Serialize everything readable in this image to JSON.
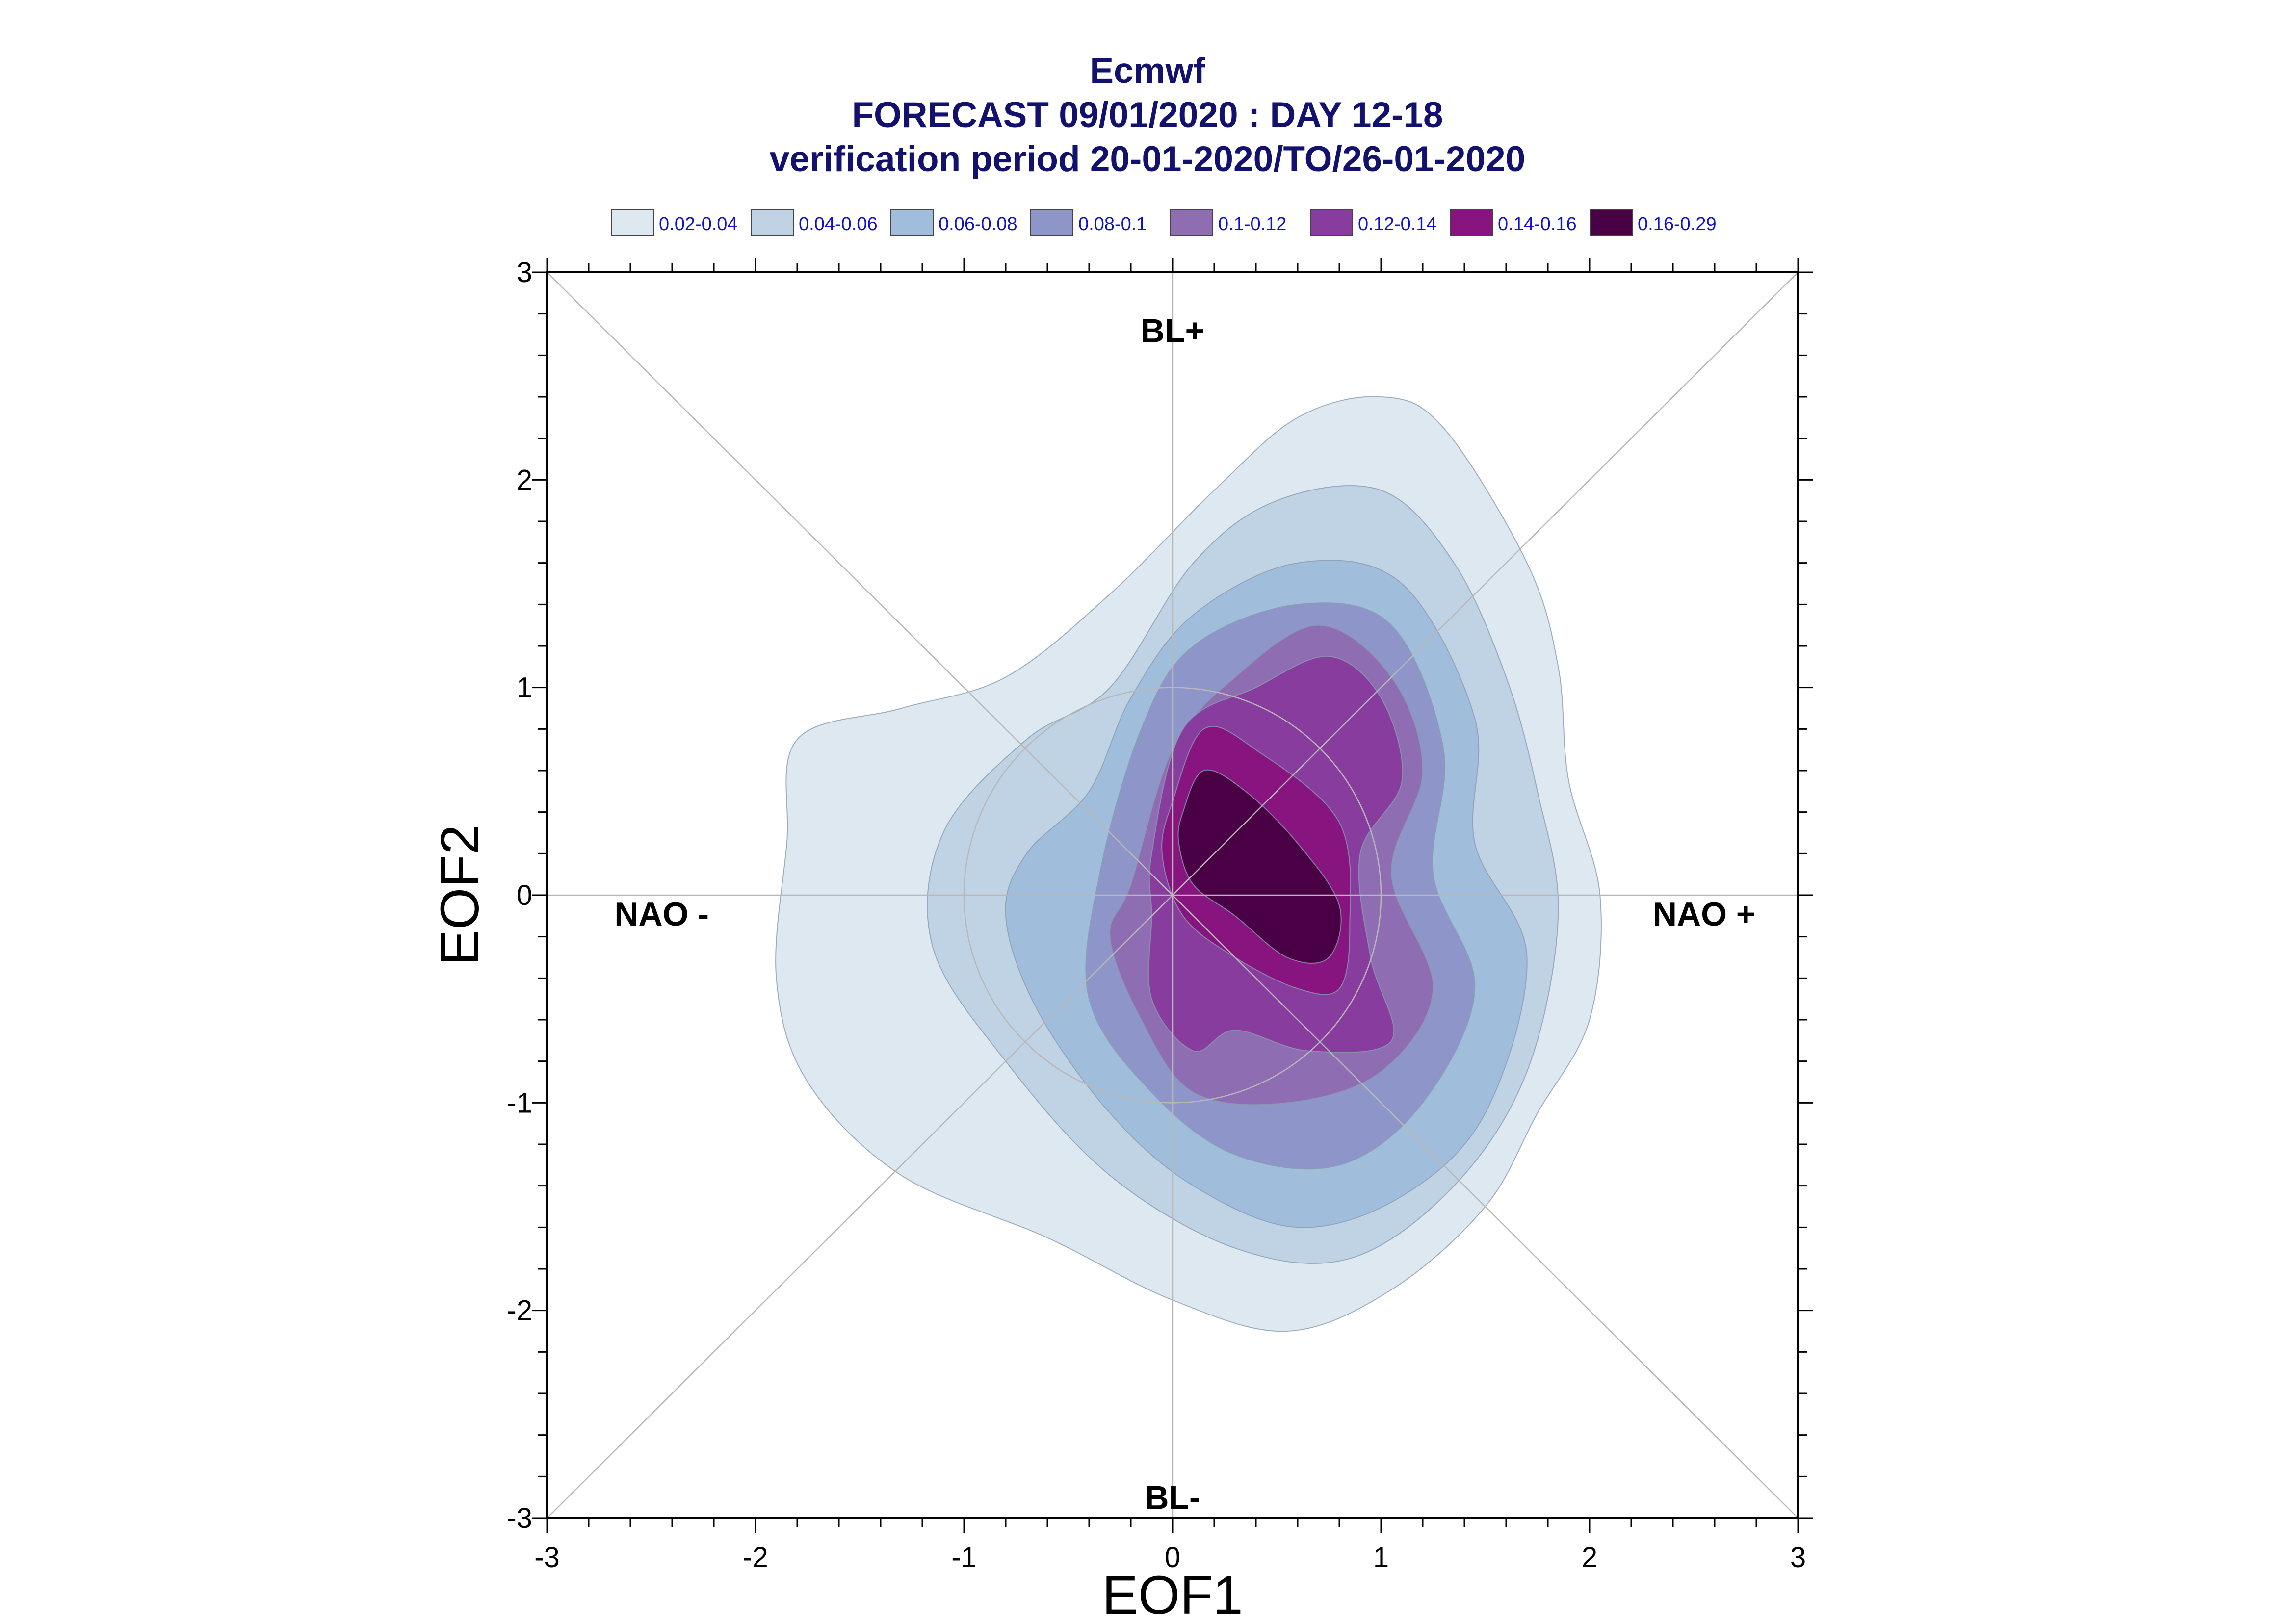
{
  "title": {
    "line1": "Ecmwf",
    "line2": "FORECAST 09/01/2020 : DAY 12-18",
    "line3": "verification period 20-01-2020/TO/26-01-2020"
  },
  "legend": [
    {
      "label": "0.02-0.04",
      "color": "#dde8f1"
    },
    {
      "label": "0.04-0.06",
      "color": "#bfd3e4"
    },
    {
      "label": "0.06-0.08",
      "color": "#a0bedb"
    },
    {
      "label": "0.08-0.1",
      "color": "#8e95c8"
    },
    {
      "label": "0.1-0.12",
      "color": "#8f6db3"
    },
    {
      "label": "0.12-0.14",
      "color": "#883c9e"
    },
    {
      "label": "0.14-0.16",
      "color": "#88147f"
    },
    {
      "label": "0.16-0.29",
      "color": "#4a0045"
    }
  ],
  "chart_data": {
    "type": "contour",
    "xlabel": "EOF1",
    "ylabel": "EOF2",
    "xlim": [
      -3,
      3
    ],
    "ylim": [
      -3,
      3
    ],
    "xticks": [
      "-3",
      "-2",
      "-1",
      "0",
      "1",
      "2",
      "3"
    ],
    "yticks": [
      "3",
      "2",
      "1",
      "0",
      "-1",
      "-2",
      "-3"
    ],
    "regimes": [
      {
        "label": "BL+",
        "x": 0,
        "y": 2.72
      },
      {
        "label": "BL-",
        "x": 0,
        "y": -2.9
      },
      {
        "label": "NAO -",
        "x": -2.45,
        "y": -0.09
      },
      {
        "label": "NAO +",
        "x": 2.55,
        "y": -0.09
      }
    ],
    "reference_circle": {
      "center": [
        0,
        0
      ],
      "radius": 1
    },
    "density_levels": [
      {
        "range": "0.02-0.04",
        "contour": [
          [
            -1.8,
            0.75
          ],
          [
            -1.3,
            0.9
          ],
          [
            -0.8,
            1.05
          ],
          [
            -0.3,
            1.45
          ],
          [
            0.2,
            1.95
          ],
          [
            0.6,
            2.3
          ],
          [
            1.0,
            2.4
          ],
          [
            1.3,
            2.25
          ],
          [
            1.7,
            1.6
          ],
          [
            1.85,
            1.1
          ],
          [
            1.9,
            0.55
          ],
          [
            2.05,
            0.0
          ],
          [
            2.0,
            -0.6
          ],
          [
            1.75,
            -1.05
          ],
          [
            1.5,
            -1.5
          ],
          [
            1.05,
            -1.9
          ],
          [
            0.55,
            -2.1
          ],
          [
            0.0,
            -1.95
          ],
          [
            -0.6,
            -1.65
          ],
          [
            -1.3,
            -1.35
          ],
          [
            -1.75,
            -0.9
          ],
          [
            -1.9,
            -0.4
          ],
          [
            -1.85,
            0.25
          ]
        ]
      },
      {
        "range": "0.04-0.06",
        "contour": [
          [
            -1.1,
            0.3
          ],
          [
            -0.7,
            0.75
          ],
          [
            -0.3,
            1.0
          ],
          [
            0.1,
            1.6
          ],
          [
            0.5,
            1.9
          ],
          [
            1.0,
            1.95
          ],
          [
            1.35,
            1.6
          ],
          [
            1.6,
            1.05
          ],
          [
            1.75,
            0.5
          ],
          [
            1.85,
            -0.1
          ],
          [
            1.7,
            -0.85
          ],
          [
            1.35,
            -1.4
          ],
          [
            0.85,
            -1.75
          ],
          [
            0.3,
            -1.7
          ],
          [
            -0.3,
            -1.35
          ],
          [
            -0.8,
            -0.8
          ],
          [
            -1.15,
            -0.25
          ]
        ]
      },
      {
        "range": "0.06-0.08",
        "contour": [
          [
            -0.7,
            0.2
          ],
          [
            -0.4,
            0.5
          ],
          [
            -0.2,
            0.95
          ],
          [
            0.1,
            1.35
          ],
          [
            0.6,
            1.6
          ],
          [
            1.1,
            1.5
          ],
          [
            1.45,
            0.85
          ],
          [
            1.45,
            0.25
          ],
          [
            1.7,
            -0.3
          ],
          [
            1.5,
            -1.05
          ],
          [
            1.1,
            -1.45
          ],
          [
            0.6,
            -1.6
          ],
          [
            0.1,
            -1.4
          ],
          [
            -0.3,
            -1.05
          ],
          [
            -0.65,
            -0.55
          ],
          [
            -0.8,
            -0.1
          ]
        ]
      },
      {
        "range": "0.08-0.1",
        "contour": [
          [
            -0.35,
            0.1
          ],
          [
            -0.15,
            0.8
          ],
          [
            0.1,
            1.2
          ],
          [
            0.6,
            1.4
          ],
          [
            1.05,
            1.3
          ],
          [
            1.3,
            0.7
          ],
          [
            1.25,
            0.1
          ],
          [
            1.45,
            -0.45
          ],
          [
            1.2,
            -1.0
          ],
          [
            0.8,
            -1.3
          ],
          [
            0.3,
            -1.25
          ],
          [
            -0.1,
            -0.95
          ],
          [
            -0.4,
            -0.5
          ]
        ]
      },
      {
        "range": "0.1-0.12",
        "contour": [
          [
            -0.2,
            0.05
          ],
          [
            0.0,
            0.7
          ],
          [
            0.3,
            1.05
          ],
          [
            0.7,
            1.3
          ],
          [
            1.05,
            1.05
          ],
          [
            1.2,
            0.6
          ],
          [
            1.05,
            0.1
          ],
          [
            1.25,
            -0.45
          ],
          [
            1.0,
            -0.85
          ],
          [
            0.55,
            -1.0
          ],
          [
            0.1,
            -0.95
          ],
          [
            -0.15,
            -0.6
          ],
          [
            -0.3,
            -0.2
          ]
        ]
      },
      {
        "range": "0.12-0.14",
        "contour": [
          [
            -0.1,
            0.2
          ],
          [
            0.05,
            0.8
          ],
          [
            0.4,
            1.0
          ],
          [
            0.75,
            1.15
          ],
          [
            1.0,
            0.95
          ],
          [
            1.1,
            0.55
          ],
          [
            0.9,
            0.2
          ],
          [
            0.95,
            -0.3
          ],
          [
            1.05,
            -0.7
          ],
          [
            0.65,
            -0.75
          ],
          [
            0.3,
            -0.65
          ],
          [
            0.1,
            -0.75
          ],
          [
            -0.1,
            -0.5
          ],
          [
            -0.1,
            -0.1
          ]
        ]
      },
      {
        "range": "0.14-0.16",
        "contour": [
          [
            0.0,
            0.45
          ],
          [
            0.15,
            0.8
          ],
          [
            0.4,
            0.7
          ],
          [
            0.8,
            0.35
          ],
          [
            0.85,
            -0.15
          ],
          [
            0.8,
            -0.45
          ],
          [
            0.6,
            -0.45
          ],
          [
            0.3,
            -0.3
          ],
          [
            0.05,
            -0.1
          ],
          [
            -0.05,
            0.2
          ]
        ]
      },
      {
        "range": "0.16-0.29",
        "contour": [
          [
            0.05,
            0.4
          ],
          [
            0.15,
            0.6
          ],
          [
            0.35,
            0.5
          ],
          [
            0.6,
            0.25
          ],
          [
            0.8,
            -0.05
          ],
          [
            0.75,
            -0.3
          ],
          [
            0.55,
            -0.3
          ],
          [
            0.3,
            -0.1
          ],
          [
            0.1,
            0.05
          ],
          [
            0.03,
            0.25
          ]
        ]
      }
    ]
  }
}
